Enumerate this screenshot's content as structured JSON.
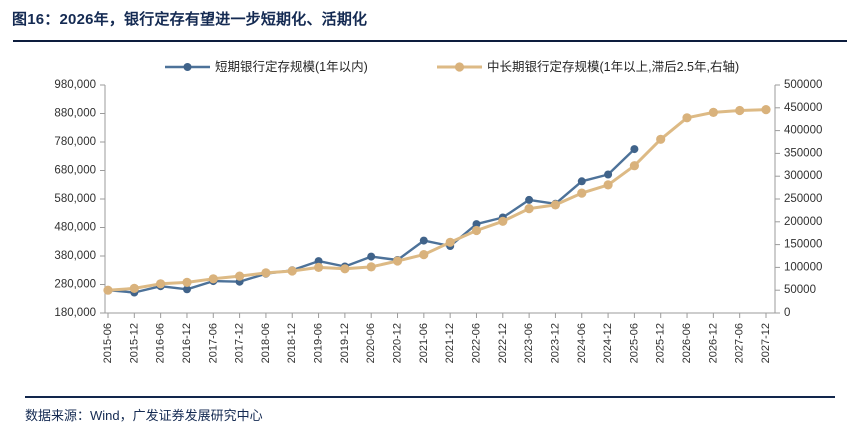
{
  "title": "图16：2026年，银行定存有望进一步短期化、活期化",
  "footer": {
    "source_label": "数据来源：Wind，广发证券发展研究中心"
  },
  "colors": {
    "accent_navy": "#142a52",
    "short_series": "#4d7299",
    "short_marker": "#40638a",
    "long_series": "#ddba85",
    "long_marker": "#d9b27c",
    "axis_line": "#9b9b9b",
    "axis_label": "#303030"
  },
  "chart_data": {
    "type": "line",
    "title": "",
    "legend_position": "top",
    "grid": false,
    "categories": [
      "2015-06",
      "2015-12",
      "2016-06",
      "2016-12",
      "2017-06",
      "2017-12",
      "2018-06",
      "2018-12",
      "2019-06",
      "2019-12",
      "2020-06",
      "2020-12",
      "2021-06",
      "2021-12",
      "2022-06",
      "2022-12",
      "2023-06",
      "2023-12",
      "2024-06",
      "2024-12",
      "2025-06",
      "2025-12",
      "2026-06",
      "2026-12",
      "2027-06",
      "2027-12"
    ],
    "left_axis": {
      "min": 180000,
      "max": 980000,
      "step": 100000,
      "tick_labels": [
        "180,000",
        "280,000",
        "380,000",
        "480,000",
        "580,000",
        "680,000",
        "780,000",
        "880,000",
        "980,000"
      ]
    },
    "right_axis": {
      "min": 0,
      "max": 500000,
      "step": 50000,
      "tick_labels": [
        "0",
        "50000",
        "100000",
        "150000",
        "200000",
        "250000",
        "300000",
        "350000",
        "400000",
        "450000",
        "500000"
      ]
    },
    "series": [
      {
        "name": "短期银行定存规模(1年以内)",
        "axis": "left",
        "values": [
          260000,
          252000,
          274000,
          263000,
          292000,
          290000,
          318000,
          330000,
          362000,
          343000,
          378000,
          366000,
          434000,
          415000,
          492000,
          515000,
          577000,
          563000,
          642000,
          666000,
          755000,
          null,
          null,
          null,
          null,
          null
        ]
      },
      {
        "name": "中长期银行定存规模(1年以上,滞后2.5年,右轴)",
        "axis": "right",
        "values": [
          50000,
          54000,
          64000,
          67000,
          75000,
          81000,
          88000,
          92000,
          100000,
          97000,
          101000,
          114000,
          128000,
          155000,
          181000,
          201000,
          229000,
          237000,
          263000,
          281000,
          323000,
          381000,
          428000,
          440000,
          444000,
          446000
        ]
      }
    ]
  }
}
